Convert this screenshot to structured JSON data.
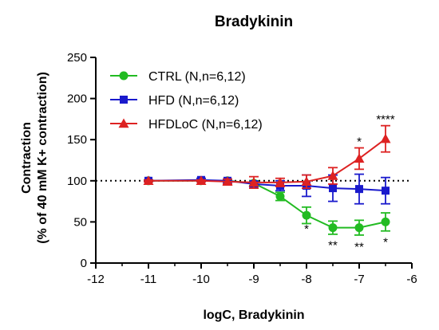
{
  "chart_data": {
    "type": "line",
    "title": "Bradykinin",
    "xlabel": "logC, Bradykinin",
    "ylabel_line1": "Contraction",
    "ylabel_line2": "(% of 40 mM K+ contraction)",
    "xlim": [
      -12,
      -6
    ],
    "ylim": [
      0,
      250
    ],
    "xticks": [
      -12,
      -11,
      -10,
      -9,
      -8,
      -7,
      -6
    ],
    "xtick_labels": [
      "-12",
      "-11",
      "-10",
      "-9",
      "-8",
      "-7",
      "-6"
    ],
    "yticks": [
      0,
      50,
      100,
      150,
      200,
      250
    ],
    "ytick_labels": [
      "0",
      "50",
      "100",
      "150",
      "200",
      "250"
    ],
    "reference_line": 100,
    "grid": false,
    "legend_position": "top-left",
    "series": [
      {
        "name": "CTRL (N,n=6,12)",
        "color": "#22bb22",
        "marker": "circle",
        "x": [
          -11,
          -10,
          -9.5,
          -9,
          -8.5,
          -8,
          -7.5,
          -7,
          -6.5
        ],
        "y": [
          100,
          100,
          100,
          97,
          81,
          58,
          43,
          43,
          50
        ],
        "err": [
          1,
          1,
          1,
          3,
          5,
          10,
          8,
          9,
          11
        ]
      },
      {
        "name": "HFD (N,n=6,12)",
        "color": "#1a1acc",
        "marker": "square",
        "x": [
          -11,
          -10,
          -9.5,
          -9,
          -8.5,
          -8,
          -7.5,
          -7,
          -6.5
        ],
        "y": [
          100,
          101,
          100,
          96,
          94,
          94,
          91,
          90,
          88
        ],
        "err": [
          1,
          2,
          2,
          3,
          6,
          13,
          16,
          18,
          16
        ]
      },
      {
        "name": "HFDLoC (N,n=6,12)",
        "color": "#dd2222",
        "marker": "triangle",
        "x": [
          -11,
          -10,
          -9.5,
          -9,
          -8.5,
          -8,
          -7.5,
          -7,
          -6.5
        ],
        "y": [
          100,
          100,
          99,
          98,
          98,
          99,
          106,
          127,
          151
        ],
        "err": [
          1,
          1,
          3,
          7,
          5,
          8,
          10,
          13,
          16
        ]
      }
    ],
    "annotations": [
      {
        "text": "*",
        "x": -8.0,
        "y": 37
      },
      {
        "text": "**",
        "x": -7.5,
        "y": 17
      },
      {
        "text": "**",
        "x": -7.0,
        "y": 15
      },
      {
        "text": "*",
        "x": -6.5,
        "y": 21
      },
      {
        "text": "*",
        "x": -7.0,
        "y": 143
      },
      {
        "text": "****",
        "x": -6.5,
        "y": 170
      }
    ]
  }
}
